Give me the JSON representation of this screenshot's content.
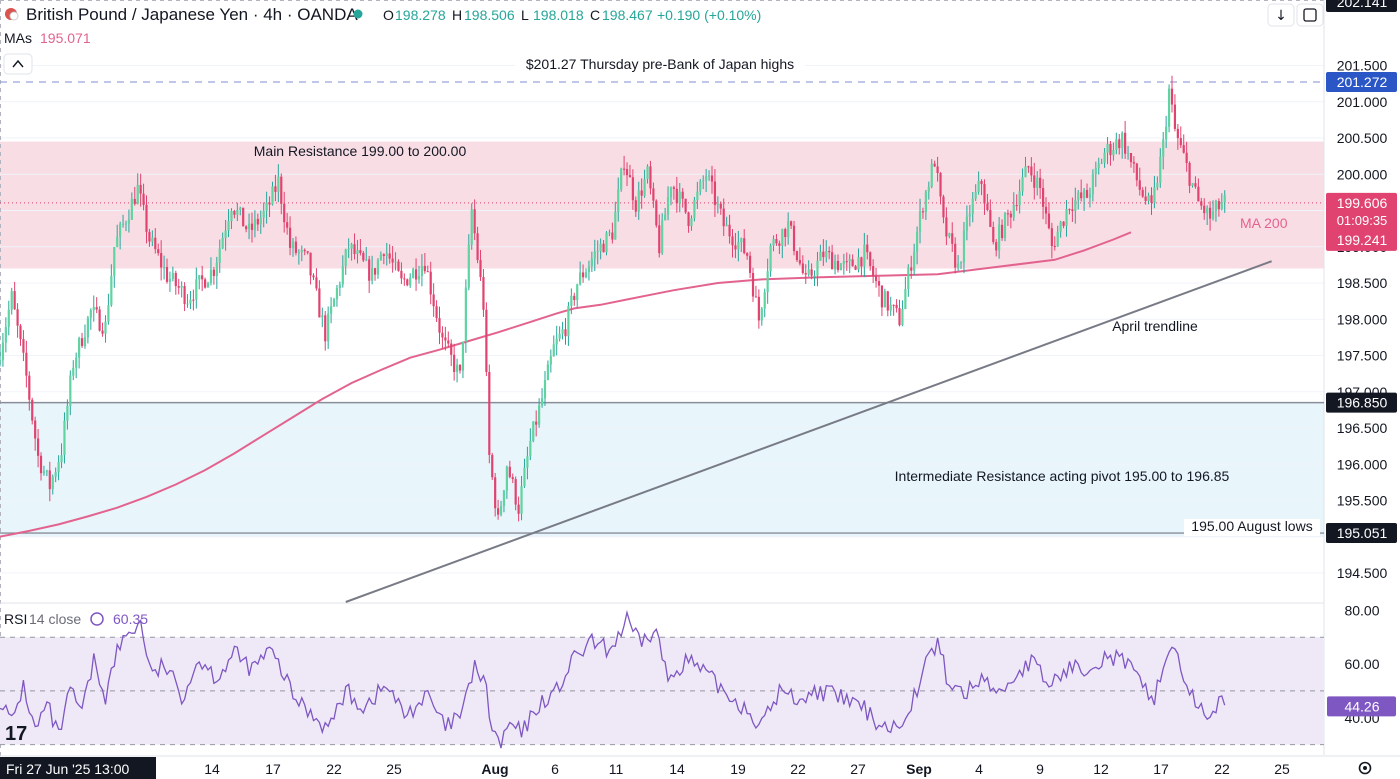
{
  "header": {
    "title": "British Pound / Japanese Yen · 4h · OANDA",
    "o_label": "O",
    "o_value": "198.278",
    "h_label": "H",
    "h_value": "198.506",
    "l_label": "L",
    "l_value": "198.018",
    "c_label": "C",
    "c_value": "198.467",
    "change": "+0.190 (+0.10%)",
    "mas_label": "MAs",
    "mas_value": "195.071"
  },
  "rsi_legend": {
    "label": "RSI",
    "params": "14 close",
    "value": "60.35"
  },
  "colors": {
    "up": "#26a69a",
    "up_body": "#5fd3a0",
    "down": "#e0436f",
    "ma": "#e3638f",
    "resistance_zone": "#f9dde5",
    "pivot_zone": "#e8f5fb",
    "trendline": "#787b86",
    "rsi_line": "#7e57c2",
    "rsi_band": "#efe9f7"
  },
  "chart_data": {
    "type": "candlestick",
    "timeframe": "4h",
    "ylim": [
      194.1,
      202.1
    ],
    "price_ticks": [
      "194.500",
      "195.000",
      "195.500",
      "196.000",
      "196.500",
      "197.000",
      "197.500",
      "198.000",
      "198.500",
      "199.000",
      "199.500",
      "200.000",
      "200.500",
      "201.000",
      "201.500"
    ],
    "x_ticks": [
      {
        "label": "14",
        "bold": false
      },
      {
        "label": "17",
        "bold": false
      },
      {
        "label": "22",
        "bold": false
      },
      {
        "label": "25",
        "bold": false
      },
      {
        "label": "Aug",
        "bold": true
      },
      {
        "label": "6",
        "bold": false
      },
      {
        "label": "11",
        "bold": false
      },
      {
        "label": "14",
        "bold": false
      },
      {
        "label": "19",
        "bold": false
      },
      {
        "label": "22",
        "bold": false
      },
      {
        "label": "27",
        "bold": false
      },
      {
        "label": "Sep",
        "bold": true
      },
      {
        "label": "4",
        "bold": false
      },
      {
        "label": "9",
        "bold": false
      },
      {
        "label": "12",
        "bold": false
      },
      {
        "label": "17",
        "bold": false
      },
      {
        "label": "22",
        "bold": false
      },
      {
        "label": "25",
        "bold": false
      }
    ],
    "cursor_date": "Fri 27 Jun '25   13:00",
    "zones": [
      {
        "name": "main-resistance",
        "from": 198.7,
        "to": 200.45,
        "label": "Main Resistance 199.00 to 200.00"
      },
      {
        "name": "pivot",
        "from": 195.0,
        "to": 196.85,
        "label": "Intermediate Resistance acting pivot 195.00 to 196.85"
      }
    ],
    "levels": [
      {
        "name": "thursday-high",
        "value": 201.272,
        "label": "$201.27 Thursday pre-Bank of Japan highs",
        "badge": "201.272",
        "style": "dashed"
      },
      {
        "name": "pivot-top",
        "value": 196.85,
        "label": "",
        "badge": "196.850",
        "style": "solid"
      },
      {
        "name": "august-lows",
        "value": 195.051,
        "label": "195.00 August lows",
        "badge": "195.051",
        "style": "solid"
      }
    ],
    "top_badge": "202.141",
    "current_price": {
      "value": 199.606,
      "price": "199.606",
      "countdown": "01:09:35"
    },
    "ma200": {
      "label": "MA 200",
      "badge": "199.241",
      "points": [
        [
          0,
          195.0
        ],
        [
          10,
          195.08
        ],
        [
          20,
          195.17
        ],
        [
          30,
          195.28
        ],
        [
          40,
          195.4
        ],
        [
          50,
          195.55
        ],
        [
          60,
          195.72
        ],
        [
          70,
          195.92
        ],
        [
          80,
          196.15
        ],
        [
          90,
          196.4
        ],
        [
          100,
          196.65
        ],
        [
          110,
          196.9
        ],
        [
          120,
          197.12
        ],
        [
          130,
          197.3
        ],
        [
          140,
          197.47
        ],
        [
          150,
          197.58
        ],
        [
          160,
          197.7
        ],
        [
          170,
          197.82
        ],
        [
          180,
          197.95
        ],
        [
          190,
          198.08
        ],
        [
          196,
          198.15
        ],
        [
          205,
          198.2
        ],
        [
          215,
          198.28
        ],
        [
          230,
          198.4
        ],
        [
          245,
          198.5
        ],
        [
          260,
          198.55
        ],
        [
          280,
          198.58
        ],
        [
          300,
          198.6
        ],
        [
          320,
          198.62
        ],
        [
          340,
          198.72
        ],
        [
          360,
          198.82
        ],
        [
          370,
          198.95
        ],
        [
          380,
          199.1
        ],
        [
          386,
          199.2
        ]
      ]
    },
    "trendline": {
      "label": "April trendline",
      "from": [
        118,
        194.1
      ],
      "to": [
        434,
        198.8
      ]
    },
    "anchors": [
      [
        0,
        197.4
      ],
      [
        5,
        198.3
      ],
      [
        10,
        197.2
      ],
      [
        14,
        196.1
      ],
      [
        18,
        195.7
      ],
      [
        22,
        196.2
      ],
      [
        26,
        197.4
      ],
      [
        32,
        198.1
      ],
      [
        37,
        197.9
      ],
      [
        40,
        199.0
      ],
      [
        44,
        199.4
      ],
      [
        48,
        199.8
      ],
      [
        52,
        199.1
      ],
      [
        58,
        198.6
      ],
      [
        65,
        198.3
      ],
      [
        74,
        198.7
      ],
      [
        80,
        199.6
      ],
      [
        86,
        199.2
      ],
      [
        92,
        199.5
      ],
      [
        96,
        199.9
      ],
      [
        100,
        199.0
      ],
      [
        106,
        198.8
      ],
      [
        112,
        197.8
      ],
      [
        116,
        198.4
      ],
      [
        120,
        199.0
      ],
      [
        128,
        198.6
      ],
      [
        132,
        199.0
      ],
      [
        138,
        198.5
      ],
      [
        146,
        198.8
      ],
      [
        152,
        197.7
      ],
      [
        158,
        197.2
      ],
      [
        162,
        199.5
      ],
      [
        166,
        198.2
      ],
      [
        168,
        196.1
      ],
      [
        171,
        195.2
      ],
      [
        174,
        196.0
      ],
      [
        178,
        195.4
      ],
      [
        182,
        196.3
      ],
      [
        186,
        196.9
      ],
      [
        190,
        197.6
      ],
      [
        194,
        197.9
      ],
      [
        198,
        198.5
      ],
      [
        204,
        198.9
      ],
      [
        210,
        199.2
      ],
      [
        214,
        200.2
      ],
      [
        218,
        199.6
      ],
      [
        222,
        200.0
      ],
      [
        226,
        199.0
      ],
      [
        230,
        199.9
      ],
      [
        236,
        199.4
      ],
      [
        242,
        200.0
      ],
      [
        248,
        199.3
      ],
      [
        256,
        198.9
      ],
      [
        260,
        198.0
      ],
      [
        264,
        199.0
      ],
      [
        270,
        199.3
      ],
      [
        276,
        198.5
      ],
      [
        282,
        198.9
      ],
      [
        290,
        198.7
      ],
      [
        296,
        198.9
      ],
      [
        302,
        198.3
      ],
      [
        308,
        198.0
      ],
      [
        312,
        198.8
      ],
      [
        316,
        199.6
      ],
      [
        320,
        200.2
      ],
      [
        323,
        199.3
      ],
      [
        328,
        198.7
      ],
      [
        332,
        199.5
      ],
      [
        336,
        199.9
      ],
      [
        340,
        199.0
      ],
      [
        346,
        199.5
      ],
      [
        352,
        200.1
      ],
      [
        356,
        199.8
      ],
      [
        360,
        199.0
      ],
      [
        366,
        199.6
      ],
      [
        372,
        199.7
      ],
      [
        378,
        200.3
      ],
      [
        384,
        200.5
      ],
      [
        390,
        199.8
      ],
      [
        394,
        199.5
      ],
      [
        398,
        200.4
      ],
      [
        400,
        201.15
      ],
      [
        402,
        200.6
      ],
      [
        406,
        200.1
      ],
      [
        410,
        199.6
      ],
      [
        414,
        199.4
      ],
      [
        418,
        199.6
      ]
    ]
  },
  "rsi": {
    "ylim": [
      28,
      82
    ],
    "ticks": [
      "80.00",
      "60.00",
      "40.00"
    ],
    "band": [
      30,
      70
    ],
    "current": "44.26",
    "anchors": [
      [
        0,
        47
      ],
      [
        4,
        38
      ],
      [
        8,
        52
      ],
      [
        12,
        35
      ],
      [
        16,
        45
      ],
      [
        20,
        33
      ],
      [
        24,
        50
      ],
      [
        28,
        42
      ],
      [
        32,
        61
      ],
      [
        36,
        48
      ],
      [
        40,
        65
      ],
      [
        44,
        72
      ],
      [
        48,
        75
      ],
      [
        52,
        55
      ],
      [
        56,
        60
      ],
      [
        62,
        48
      ],
      [
        68,
        62
      ],
      [
        74,
        55
      ],
      [
        80,
        64
      ],
      [
        86,
        58
      ],
      [
        92,
        65
      ],
      [
        96,
        58
      ],
      [
        100,
        48
      ],
      [
        106,
        42
      ],
      [
        112,
        36
      ],
      [
        118,
        50
      ],
      [
        124,
        44
      ],
      [
        132,
        52
      ],
      [
        138,
        41
      ],
      [
        146,
        48
      ],
      [
        152,
        36
      ],
      [
        158,
        42
      ],
      [
        162,
        60
      ],
      [
        166,
        50
      ],
      [
        168,
        35
      ],
      [
        171,
        30
      ],
      [
        174,
        38
      ],
      [
        178,
        34
      ],
      [
        184,
        45
      ],
      [
        190,
        50
      ],
      [
        196,
        62
      ],
      [
        202,
        68
      ],
      [
        208,
        65
      ],
      [
        214,
        76
      ],
      [
        218,
        68
      ],
      [
        224,
        72
      ],
      [
        228,
        54
      ],
      [
        234,
        62
      ],
      [
        240,
        57
      ],
      [
        248,
        49
      ],
      [
        254,
        44
      ],
      [
        260,
        37
      ],
      [
        266,
        50
      ],
      [
        272,
        47
      ],
      [
        280,
        50
      ],
      [
        288,
        47
      ],
      [
        294,
        44
      ],
      [
        300,
        38
      ],
      [
        306,
        36
      ],
      [
        312,
        48
      ],
      [
        316,
        60
      ],
      [
        320,
        68
      ],
      [
        324,
        52
      ],
      [
        330,
        49
      ],
      [
        336,
        56
      ],
      [
        340,
        48
      ],
      [
        346,
        55
      ],
      [
        352,
        61
      ],
      [
        358,
        52
      ],
      [
        364,
        58
      ],
      [
        370,
        59
      ],
      [
        378,
        63
      ],
      [
        384,
        61
      ],
      [
        390,
        51
      ],
      [
        394,
        48
      ],
      [
        398,
        62
      ],
      [
        400,
        68
      ],
      [
        404,
        56
      ],
      [
        408,
        44
      ],
      [
        412,
        41
      ],
      [
        416,
        46
      ],
      [
        418,
        44
      ]
    ]
  }
}
